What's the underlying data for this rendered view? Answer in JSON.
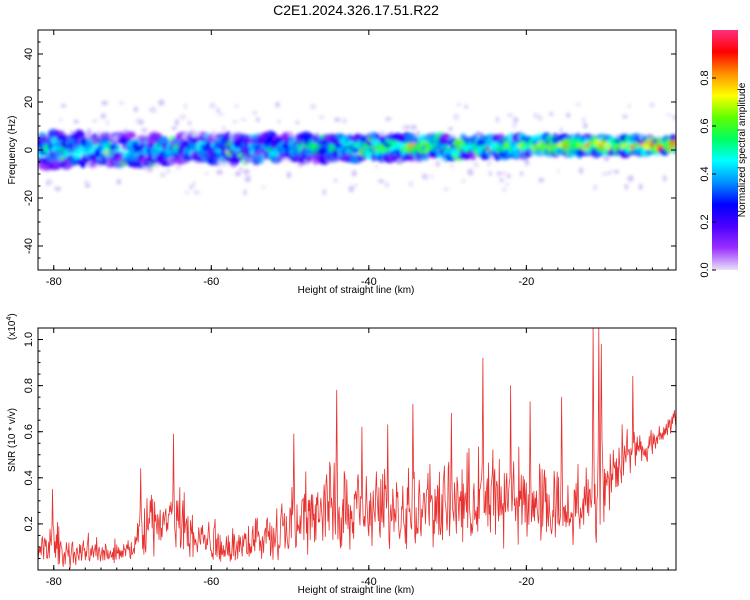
{
  "figure": {
    "title": "C2E1.2024.326.17.51.R22"
  },
  "chart_data": [
    {
      "type": "heatmap",
      "xlabel": "Height of straight line (km)",
      "ylabel": "Frequency (Hz)",
      "xlim": [
        -82,
        -1
      ],
      "ylim": [
        -50,
        50
      ],
      "xticks": [
        -80,
        -60,
        -40,
        -20
      ],
      "yticks": [
        40,
        20,
        0,
        -20,
        -40
      ],
      "colorbar": {
        "label": "Normalized spectral amplitude",
        "range": [
          0,
          1
        ],
        "ticks": [
          0.0,
          0.2,
          0.4,
          0.6,
          0.8
        ],
        "colormap": [
          "#e8e0f8",
          "#9b30ff",
          "#4b00ff",
          "#0000ff",
          "#0090ff",
          "#00ffff",
          "#00ff60",
          "#60ff00",
          "#ffff00",
          "#ff9000",
          "#ff0000",
          "#ff3080"
        ]
      },
      "band": {
        "center_freq_start": 0,
        "center_freq_end": 2,
        "half_width_start": 7,
        "half_width_end": 3,
        "intensity_profile_x": [
          -82,
          -70,
          -60,
          -50,
          -40,
          -30,
          -20,
          -10,
          -1
        ],
        "intensity_profile": [
          0.35,
          0.4,
          0.35,
          0.38,
          0.5,
          0.55,
          0.58,
          0.7,
          0.75
        ]
      }
    },
    {
      "type": "line",
      "xlabel": "Height of straight line (km)",
      "ylabel": "SNR (10 * v/v)",
      "scale_label": "(x10",
      "scale_exp": "4",
      "scale_close": ")",
      "xlim": [
        -82,
        -1
      ],
      "ylim": [
        0,
        1.05
      ],
      "xticks": [
        -80,
        -60,
        -40,
        -20
      ],
      "yticks": [
        0.2,
        0.4,
        0.6,
        0.8,
        1.0
      ],
      "line_color": "#e8312f",
      "envelope": {
        "x": [
          -82,
          -80,
          -79,
          -75,
          -70,
          -69,
          -65,
          -62,
          -58,
          -53,
          -50,
          -44,
          -40,
          -37,
          -35,
          -30,
          -25,
          -20,
          -15,
          -12,
          -11,
          -9,
          -7,
          -5,
          -3,
          -1
        ],
        "base": [
          0.02,
          0.02,
          0.02,
          0.02,
          0.03,
          0.05,
          0.05,
          0.04,
          0.02,
          0.03,
          0.05,
          0.06,
          0.07,
          0.08,
          0.08,
          0.09,
          0.08,
          0.09,
          0.1,
          0.1,
          0.1,
          0.3,
          0.4,
          0.45,
          0.55,
          0.6
        ],
        "top": [
          0.12,
          0.3,
          0.15,
          0.15,
          0.15,
          0.35,
          0.45,
          0.3,
          0.2,
          0.3,
          0.4,
          0.55,
          0.45,
          0.5,
          0.55,
          0.5,
          0.6,
          0.55,
          0.5,
          0.5,
          0.7,
          0.6,
          0.7,
          0.6,
          0.65,
          0.72
        ]
      },
      "peaks": [
        {
          "x": -80.2,
          "y": 0.35
        },
        {
          "x": -69.0,
          "y": 0.44
        },
        {
          "x": -64.8,
          "y": 0.59
        },
        {
          "x": -49.5,
          "y": 0.59
        },
        {
          "x": -44.1,
          "y": 0.78
        },
        {
          "x": -40.9,
          "y": 0.62
        },
        {
          "x": -37.6,
          "y": 0.63
        },
        {
          "x": -34.4,
          "y": 0.72
        },
        {
          "x": -29.5,
          "y": 0.68
        },
        {
          "x": -25.5,
          "y": 0.92
        },
        {
          "x": -22.0,
          "y": 0.8
        },
        {
          "x": -19.5,
          "y": 0.73
        },
        {
          "x": -15.5,
          "y": 0.75
        },
        {
          "x": -11.5,
          "y": 1.05
        },
        {
          "x": -10.8,
          "y": 1.05
        },
        {
          "x": -10.5,
          "y": 0.98
        },
        {
          "x": -6.5,
          "y": 0.84
        }
      ]
    }
  ]
}
